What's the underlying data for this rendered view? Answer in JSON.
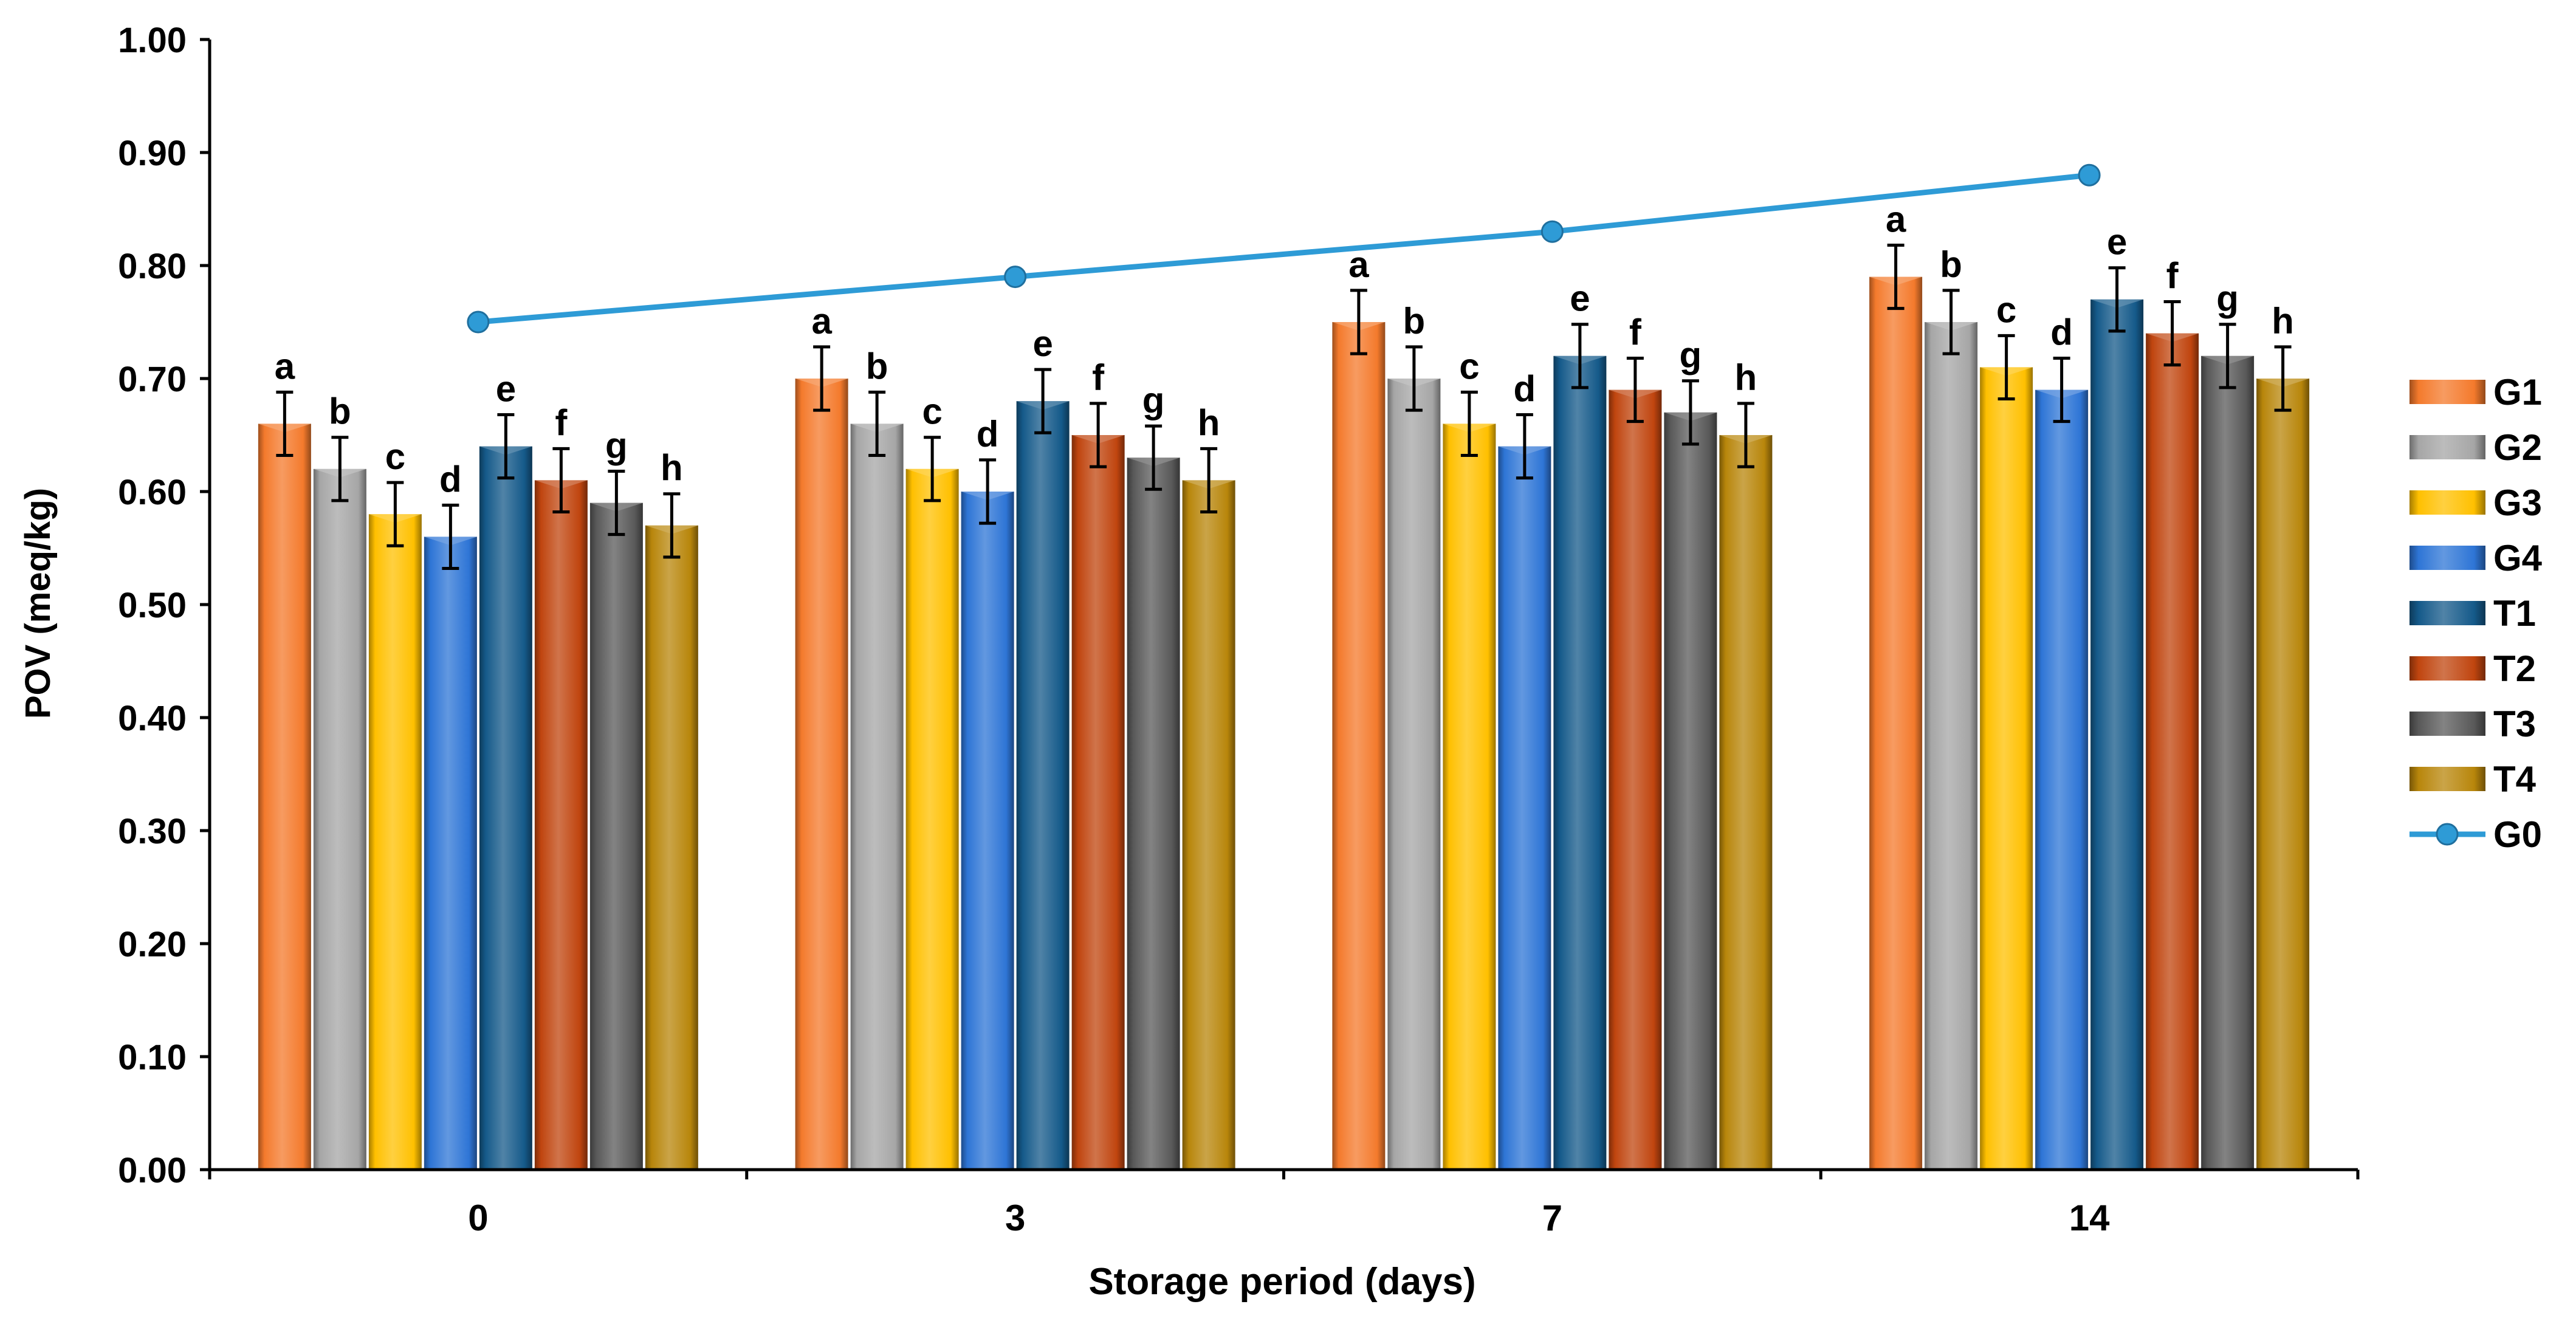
{
  "chart_data": {
    "type": "bar",
    "xlabel": "Storage period (days)",
    "ylabel": "POV (meq/kg)",
    "ylim": [
      0,
      1.0
    ],
    "yticks": [
      "0.00",
      "0.10",
      "0.20",
      "0.30",
      "0.40",
      "0.50",
      "0.60",
      "0.70",
      "0.80",
      "0.90",
      "1.00"
    ],
    "categories": [
      "0",
      "3",
      "7",
      "14"
    ],
    "grid": false,
    "legend_position": "right",
    "error_bar": 0.028,
    "series": [
      {
        "name": "G1",
        "color": "#F47A2C",
        "values": [
          0.66,
          0.7,
          0.75,
          0.79
        ],
        "labels": [
          "a",
          "a",
          "a",
          "a"
        ]
      },
      {
        "name": "G2",
        "color": "#A6A6A6",
        "values": [
          0.62,
          0.66,
          0.7,
          0.75
        ],
        "labels": [
          "b",
          "b",
          "b",
          "b"
        ]
      },
      {
        "name": "G3",
        "color": "#FFC000",
        "values": [
          0.58,
          0.62,
          0.66,
          0.71
        ],
        "labels": [
          "c",
          "c",
          "c",
          "c"
        ]
      },
      {
        "name": "G4",
        "color": "#2E75D6",
        "values": [
          0.56,
          0.6,
          0.64,
          0.69
        ],
        "labels": [
          "d",
          "d",
          "d",
          "d"
        ]
      },
      {
        "name": "T1",
        "color": "#155A8A",
        "values": [
          0.64,
          0.68,
          0.72,
          0.77
        ],
        "labels": [
          "e",
          "e",
          "e",
          "e"
        ]
      },
      {
        "name": "T2",
        "color": "#C0450F",
        "values": [
          0.61,
          0.65,
          0.69,
          0.74
        ],
        "labels": [
          "f",
          "f",
          "f",
          "f"
        ]
      },
      {
        "name": "T3",
        "color": "#595959",
        "values": [
          0.59,
          0.63,
          0.67,
          0.72
        ],
        "labels": [
          "g",
          "g",
          "g",
          "g"
        ]
      },
      {
        "name": "T4",
        "color": "#B8860B",
        "values": [
          0.57,
          0.61,
          0.65,
          0.7
        ],
        "labels": [
          "h",
          "h",
          "h",
          "h"
        ]
      }
    ],
    "line_series": {
      "name": "G0",
      "color": "#2E9BD6",
      "values": [
        0.75,
        0.79,
        0.83,
        0.88
      ]
    }
  }
}
